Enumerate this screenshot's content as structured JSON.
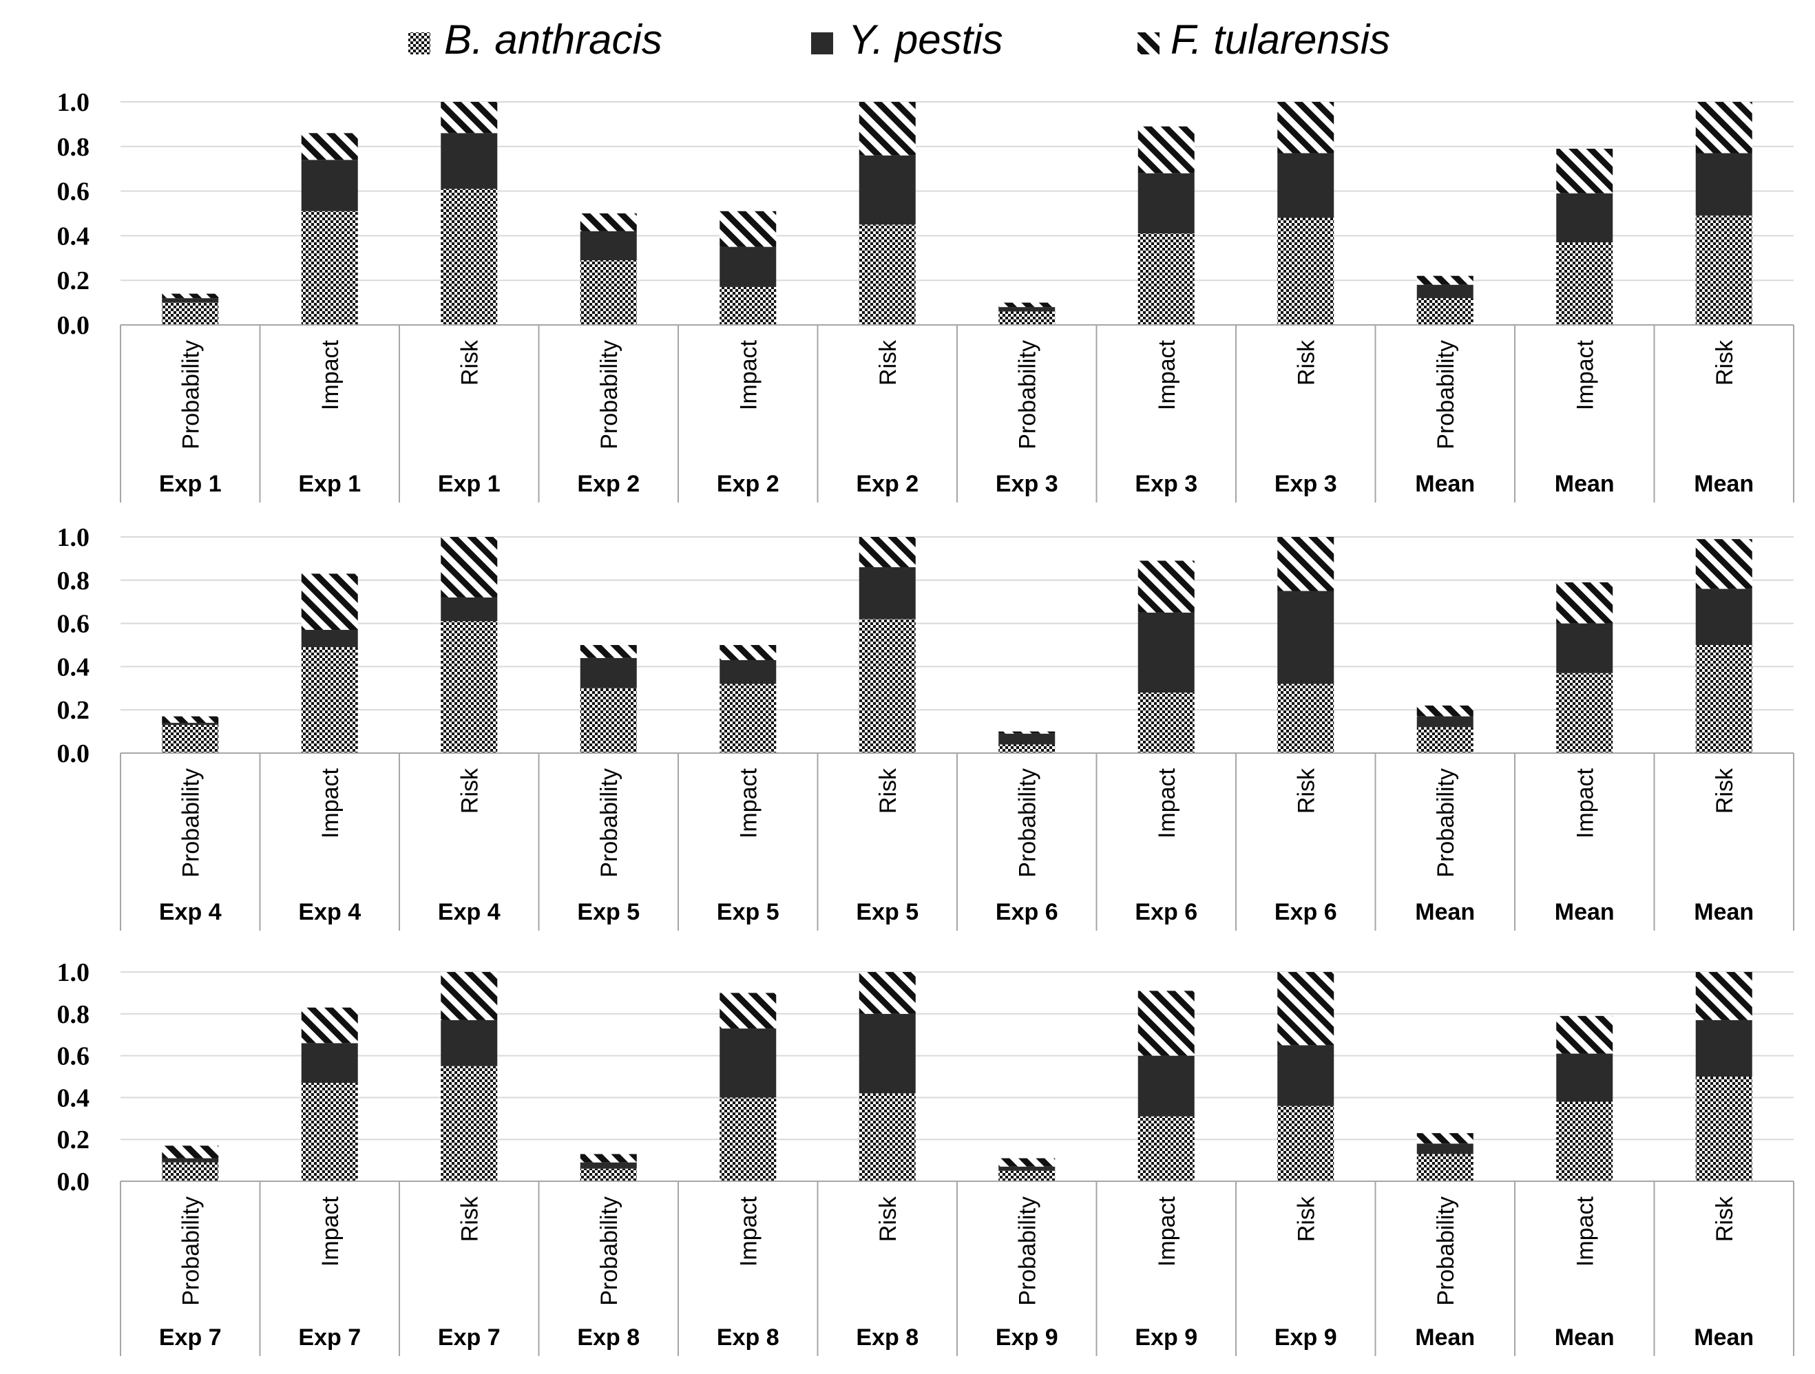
{
  "colors": {
    "anthracis_base": "#ffffff",
    "anthracis_dot": "#111111",
    "pestis_fill": "#2b2b2b",
    "tularensis_base": "#ffffff",
    "tularensis_stripe": "#111111",
    "gridline": "#d9d9d9",
    "axis": "#a6a6a6"
  },
  "chart_data": [
    {
      "type": "bar",
      "stacked": true,
      "legend_position": "top",
      "legend": [
        "B. anthracis",
        "Y. pestis",
        "F. tularensis"
      ],
      "categories": [
        "Probability",
        "Impact",
        "Risk",
        "Probability",
        "Impact",
        "Risk",
        "Probability",
        "Impact",
        "Risk",
        "Probability",
        "Impact",
        "Risk"
      ],
      "groups": [
        "Exp 1",
        "Exp 1",
        "Exp 1",
        "Exp 2",
        "Exp 2",
        "Exp 2",
        "Exp 3",
        "Exp 3",
        "Exp 3",
        "Mean",
        "Mean",
        "Mean"
      ],
      "yticks": [
        "0.0",
        "0.2",
        "0.4",
        "0.6",
        "0.8",
        "1.0"
      ],
      "ylim": [
        0,
        1
      ],
      "series": [
        {
          "name": "B. anthracis",
          "values": [
            0.1,
            0.51,
            0.61,
            0.29,
            0.17,
            0.45,
            0.06,
            0.41,
            0.48,
            0.12,
            0.37,
            0.49
          ]
        },
        {
          "name": "Y. pestis",
          "values": [
            0.02,
            0.23,
            0.25,
            0.13,
            0.18,
            0.31,
            0.02,
            0.27,
            0.29,
            0.06,
            0.22,
            0.28
          ]
        },
        {
          "name": "F. tularensis",
          "values": [
            0.02,
            0.12,
            0.14,
            0.08,
            0.16,
            0.24,
            0.02,
            0.21,
            0.23,
            0.04,
            0.2,
            0.23
          ]
        }
      ]
    },
    {
      "type": "bar",
      "stacked": true,
      "categories": [
        "Probability",
        "Impact",
        "Risk",
        "Probability",
        "Impact",
        "Risk",
        "Probability",
        "Impact",
        "Risk",
        "Probability",
        "Impact",
        "Risk"
      ],
      "groups": [
        "Exp 4",
        "Exp 4",
        "Exp 4",
        "Exp 5",
        "Exp 5",
        "Exp 5",
        "Exp 6",
        "Exp 6",
        "Exp 6",
        "Mean",
        "Mean",
        "Mean"
      ],
      "yticks": [
        "0.0",
        "0.2",
        "0.4",
        "0.6",
        "0.8",
        "1.0"
      ],
      "ylim": [
        0,
        1
      ],
      "series": [
        {
          "name": "B. anthracis",
          "values": [
            0.13,
            0.49,
            0.61,
            0.3,
            0.32,
            0.62,
            0.04,
            0.28,
            0.32,
            0.12,
            0.37,
            0.5
          ]
        },
        {
          "name": "Y. pestis",
          "values": [
            0.01,
            0.08,
            0.11,
            0.14,
            0.11,
            0.24,
            0.05,
            0.37,
            0.43,
            0.05,
            0.23,
            0.26
          ]
        },
        {
          "name": "F. tularensis",
          "values": [
            0.03,
            0.26,
            0.28,
            0.06,
            0.07,
            0.14,
            0.01,
            0.24,
            0.25,
            0.05,
            0.19,
            0.23
          ]
        }
      ]
    },
    {
      "type": "bar",
      "stacked": true,
      "categories": [
        "Probability",
        "Impact",
        "Risk",
        "Probability",
        "Impact",
        "Risk",
        "Probability",
        "Impact",
        "Risk",
        "Probability",
        "Impact",
        "Risk"
      ],
      "groups": [
        "Exp 7",
        "Exp 7",
        "Exp 7",
        "Exp 8",
        "Exp 8",
        "Exp 8",
        "Exp 9",
        "Exp 9",
        "Exp 9",
        "Mean",
        "Mean",
        "Mean"
      ],
      "yticks": [
        "0.0",
        "0.2",
        "0.4",
        "0.6",
        "0.8",
        "1.0"
      ],
      "ylim": [
        0,
        1
      ],
      "series": [
        {
          "name": "B. anthracis",
          "values": [
            0.09,
            0.47,
            0.55,
            0.06,
            0.4,
            0.42,
            0.05,
            0.31,
            0.36,
            0.13,
            0.38,
            0.5
          ]
        },
        {
          "name": "Y. pestis",
          "values": [
            0.02,
            0.19,
            0.22,
            0.03,
            0.33,
            0.38,
            0.02,
            0.29,
            0.29,
            0.05,
            0.23,
            0.27
          ]
        },
        {
          "name": "F. tularensis",
          "values": [
            0.06,
            0.17,
            0.23,
            0.04,
            0.17,
            0.2,
            0.04,
            0.31,
            0.35,
            0.05,
            0.18,
            0.23
          ]
        }
      ]
    }
  ]
}
